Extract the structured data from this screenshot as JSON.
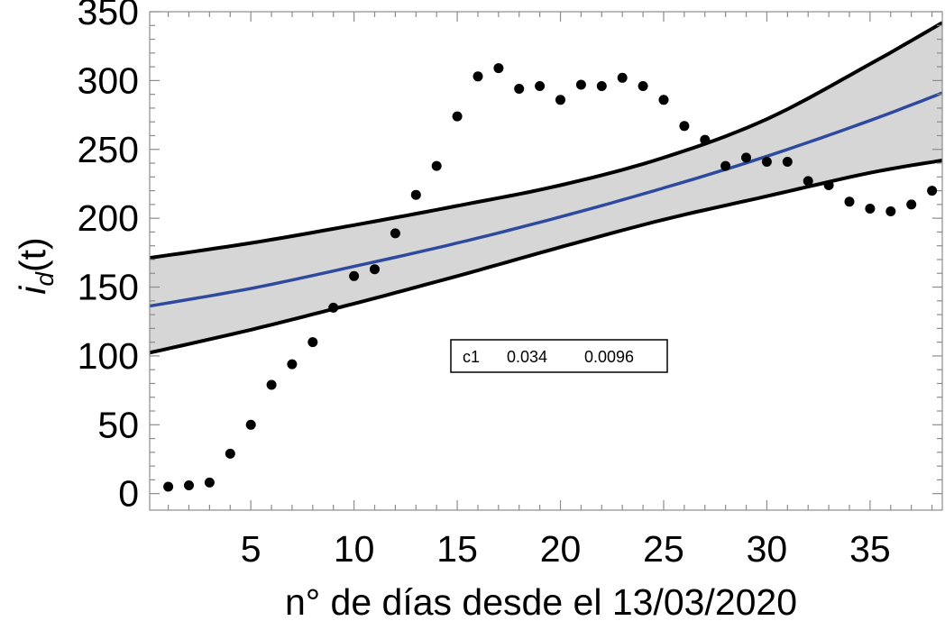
{
  "chart_data": {
    "type": "scatter",
    "title": "",
    "xlabel": "n° de días desde el 13/03/2020",
    "ylabel": {
      "base": "i",
      "subscript": "d",
      "suffix": "(t)"
    },
    "xlim": [
      0.1,
      38.5
    ],
    "ylim": [
      -12,
      350
    ],
    "xticks": [
      5,
      10,
      15,
      20,
      25,
      30,
      35
    ],
    "yticks": [
      0,
      50,
      100,
      150,
      200,
      250,
      300,
      350
    ],
    "xticks_minor_step": 1,
    "yticks_minor_step": 10,
    "grid": false,
    "colors": {
      "points": "#000000",
      "fit": "#2e4a9e",
      "band_fill": "#d6d6d6",
      "band_fill_light": "#e6e6e6",
      "band_edge": "#000000"
    },
    "points": {
      "x": [
        1,
        2,
        3,
        4,
        5,
        6,
        7,
        8,
        9,
        10,
        11,
        12,
        13,
        14,
        15,
        16,
        17,
        18,
        19,
        20,
        21,
        22,
        23,
        24,
        25,
        26,
        27,
        28,
        29,
        30,
        31,
        32,
        33,
        34,
        35,
        36,
        37,
        38
      ],
      "y": [
        5,
        6,
        8,
        29,
        50,
        79,
        94,
        110,
        135,
        158,
        163,
        189,
        217,
        238,
        274,
        303,
        309,
        294,
        296,
        286,
        297,
        296,
        302,
        296,
        286,
        267,
        257,
        238,
        244,
        241,
        241,
        227,
        224,
        212,
        207,
        205,
        210,
        220
      ]
    },
    "fit": {
      "x": [
        0,
        5,
        10,
        15,
        20,
        25,
        30,
        35,
        38.5
      ],
      "y": [
        136,
        149,
        165,
        182,
        201,
        222,
        245,
        271,
        291
      ]
    },
    "band_upper": {
      "x": [
        0,
        5,
        10,
        15,
        20,
        25,
        30,
        35,
        38.5
      ],
      "y": [
        171,
        182,
        195,
        209,
        224,
        244,
        272,
        312,
        342
      ]
    },
    "band_lower": {
      "x": [
        0,
        5,
        10,
        15,
        20,
        25,
        30,
        35,
        38.5
      ],
      "y": [
        102,
        119,
        138,
        158,
        179,
        199,
        216,
        233,
        242
      ]
    },
    "annotation": {
      "label": "c1",
      "estimate": "0.034",
      "std_error": "0.0096",
      "placement": "center"
    }
  }
}
